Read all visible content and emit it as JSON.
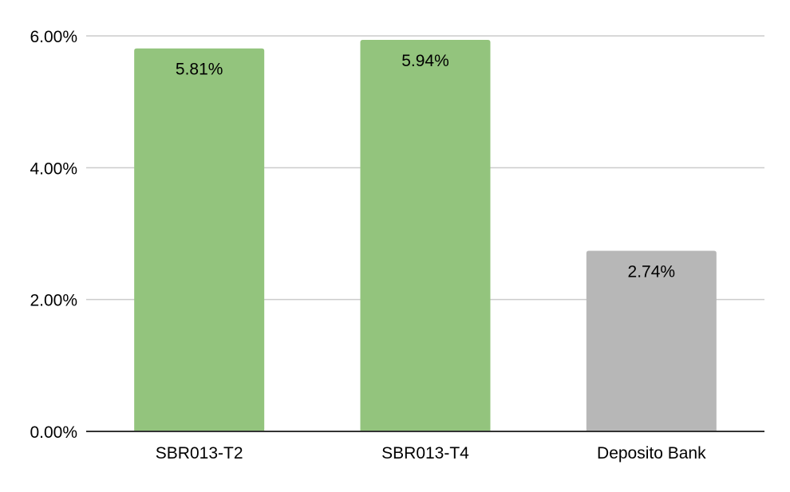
{
  "chart_data": {
    "type": "bar",
    "title": "",
    "xlabel": "",
    "ylabel": "",
    "categories": [
      "SBR013-T2",
      "SBR013-T4",
      "Deposito Bank"
    ],
    "values": [
      5.81,
      5.94,
      2.74
    ],
    "data_labels": [
      "5.81%",
      "5.94%",
      "2.74%"
    ],
    "bar_colors": [
      "#93c47d",
      "#93c47d",
      "#b7b7b7"
    ],
    "ylim": [
      0,
      6
    ],
    "yticks": [
      0,
      2,
      4,
      6
    ],
    "ytick_labels": [
      "0.00%",
      "2.00%",
      "4.00%",
      "6.00%"
    ],
    "grid": true,
    "legend": "none"
  }
}
